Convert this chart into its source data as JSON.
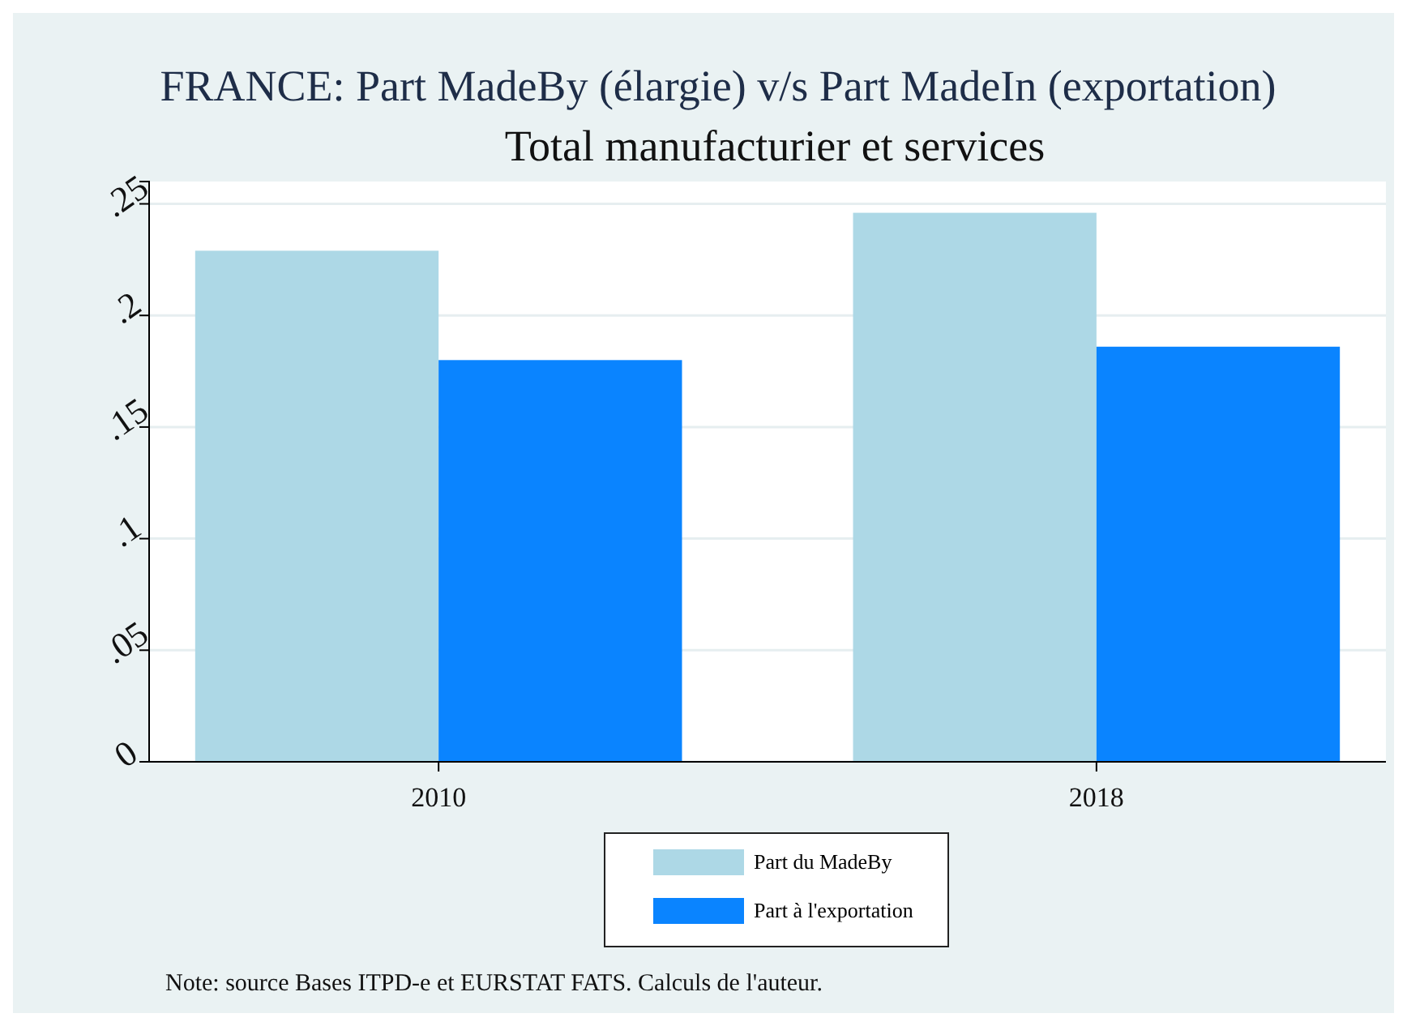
{
  "chart_data": {
    "type": "bar",
    "title": "FRANCE: Part MadeBy (élargie) v/s Part MadeIn (exportation)",
    "subtitle": "Total manufacturier et services",
    "categories": [
      "2010",
      "2018"
    ],
    "series": [
      {
        "name": "Part du MadeBy",
        "color": "#add8e6",
        "values": [
          0.229,
          0.246
        ]
      },
      {
        "name": "Part à l'exportation",
        "color": "#0a84ff",
        "values": [
          0.18,
          0.186
        ]
      }
    ],
    "ylim": [
      0,
      0.26
    ],
    "yticks": [
      {
        "value": 0,
        "label": "0"
      },
      {
        "value": 0.05,
        "label": ".05"
      },
      {
        "value": 0.1,
        "label": ".1"
      },
      {
        "value": 0.15,
        "label": ".15"
      },
      {
        "value": 0.2,
        "label": ".2"
      },
      {
        "value": 0.25,
        "label": ".25"
      }
    ],
    "grid": "y",
    "legend": "bottom",
    "annotations": [
      "Note: source Bases ITPD-e et EURSTAT FATS. Calculs de l'auteur."
    ]
  }
}
